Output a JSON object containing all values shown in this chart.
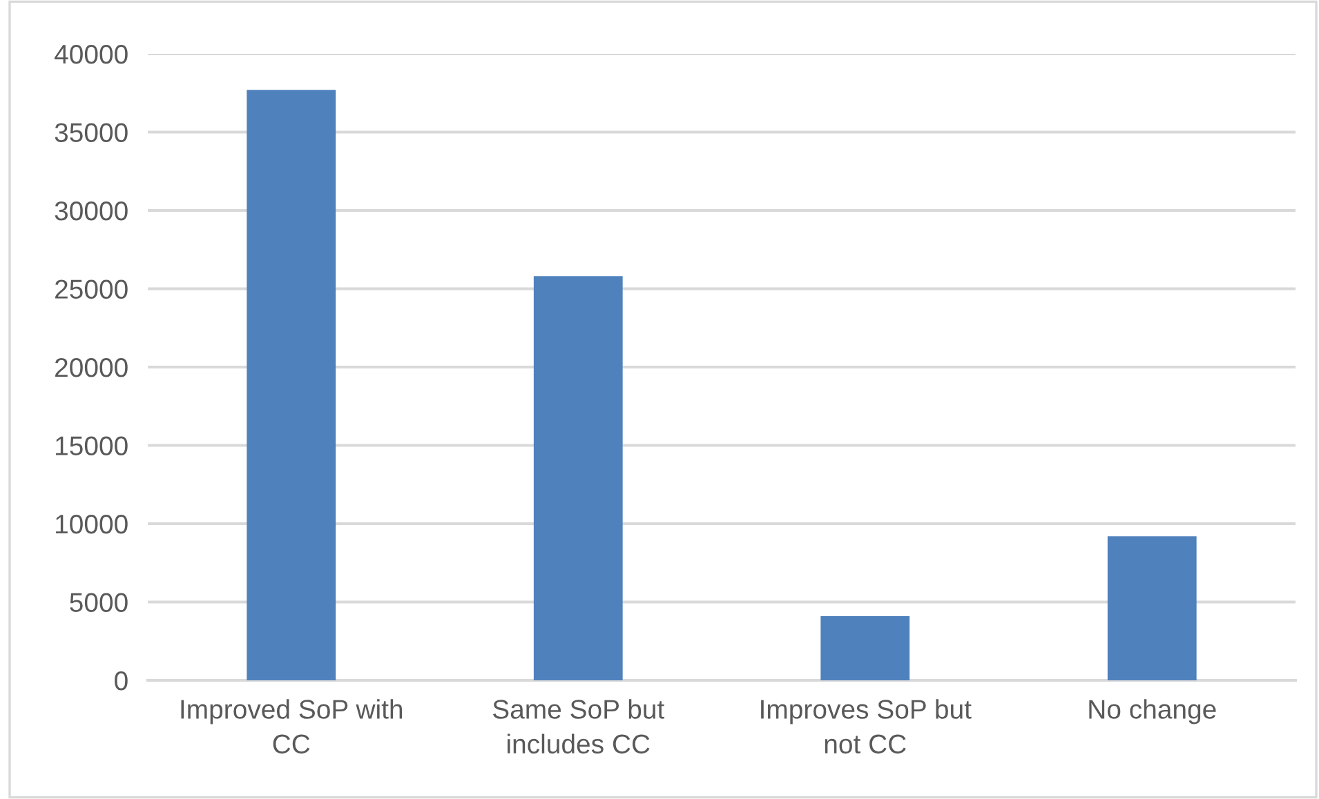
{
  "chart_data": {
    "type": "bar",
    "categories": [
      "Improved SoP with CC",
      "Same SoP but includes CC",
      "Improves SoP but not CC",
      "No change"
    ],
    "values": [
      37700,
      25800,
      4100,
      9200
    ],
    "color": "#4f81bd",
    "ylim": [
      0,
      40000
    ],
    "yticks": [
      0,
      5000,
      10000,
      15000,
      20000,
      25000,
      30000,
      35000,
      40000
    ],
    "grid": "y",
    "legend": false
  }
}
